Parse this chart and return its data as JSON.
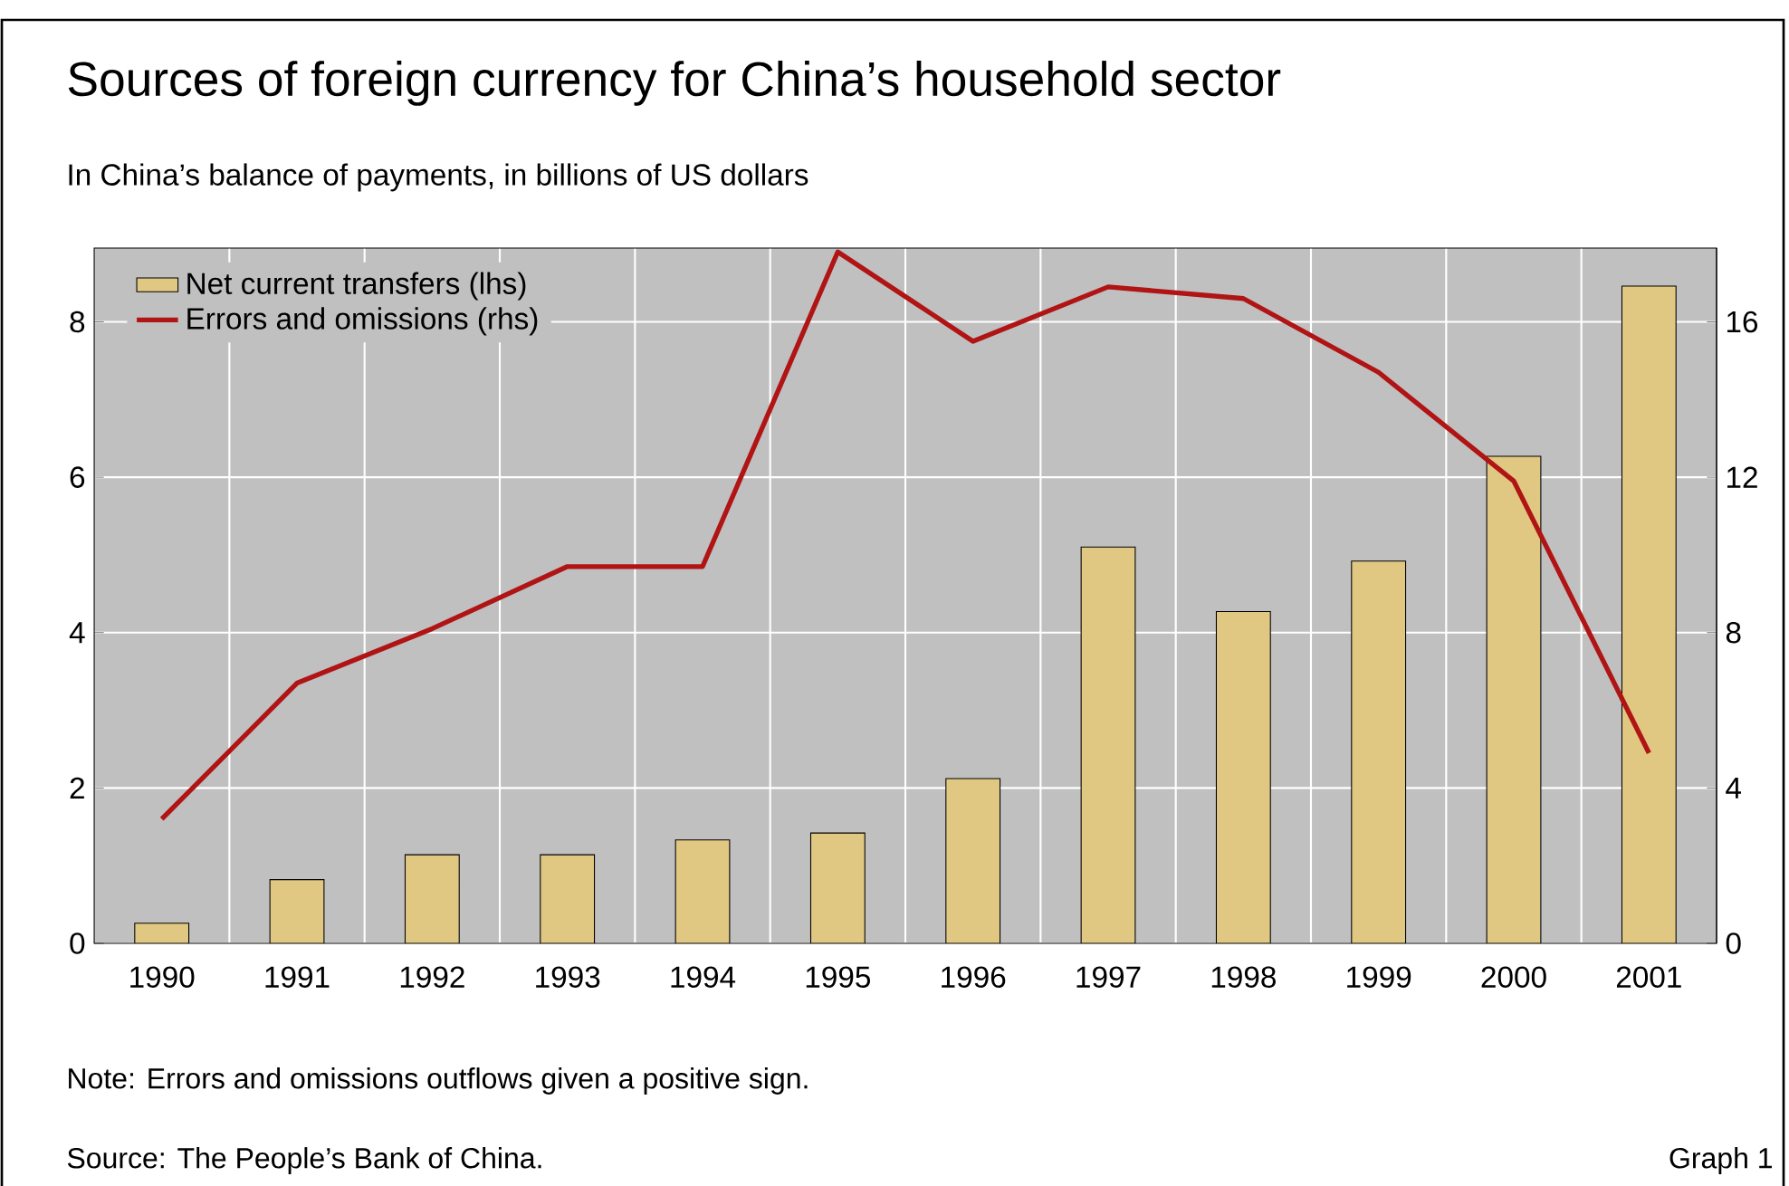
{
  "chart_data": {
    "type": "bar",
    "title": "Sources of foreign currency for China’s household sector",
    "subtitle": "In China’s balance of payments, in billions of US dollars",
    "categories": [
      "1990",
      "1991",
      "1992",
      "1993",
      "1994",
      "1995",
      "1996",
      "1997",
      "1998",
      "1999",
      "2000",
      "2001"
    ],
    "series": [
      {
        "name": "Net current transfers (lhs)",
        "color": "#e0c882",
        "values": [
          0.26,
          0.82,
          1.14,
          1.14,
          1.33,
          1.42,
          2.12,
          5.1,
          4.27,
          4.92,
          6.27,
          8.46
        ]
      },
      {
        "name": "Errors and omissions (rhs)",
        "type": "line",
        "axis": "y2",
        "color": "#b01414",
        "values": [
          3.2,
          6.7,
          8.1,
          9.7,
          9.7,
          17.8,
          15.5,
          16.9,
          16.6,
          14.7,
          11.9,
          4.9
        ]
      }
    ],
    "ylim": [
      0,
      8.95
    ],
    "yticks": [
      0,
      2,
      4,
      6,
      8
    ],
    "y2lim": [
      0,
      17.9
    ],
    "y2ticks": [
      0,
      4,
      8,
      12,
      16
    ],
    "grid": true,
    "legend": "top left",
    "annotations": [
      "Note: Errors and omissions outflows given a positive sign.",
      "Source: The People’s Bank of China.",
      "Graph 1"
    ]
  }
}
